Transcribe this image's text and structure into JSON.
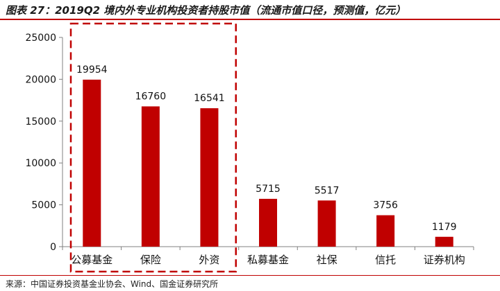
{
  "figure": {
    "title": "图表 27：2019Q2 境内外专业机构投资者持股市值（流通市值口径，预测值，亿元）",
    "source": "来源：中国证券投资基金业协会、Wind、国金证券研究所"
  },
  "colors": {
    "bar": "#c00000",
    "highlight_box": "#c00000",
    "axis": "#808080"
  },
  "chart_data": {
    "type": "bar",
    "categories": [
      "公募基金",
      "保险",
      "外资",
      "私募基金",
      "社保",
      "信托",
      "证券机构"
    ],
    "values": [
      19954,
      16760,
      16541,
      5715,
      5517,
      3756,
      1179
    ],
    "ylim": [
      0,
      25000
    ],
    "yticks": [
      0,
      5000,
      10000,
      15000,
      20000,
      25000
    ],
    "highlight_categories": [
      "公募基金",
      "保险",
      "外资"
    ],
    "grid": false,
    "title": "",
    "xlabel": "",
    "ylabel": ""
  }
}
